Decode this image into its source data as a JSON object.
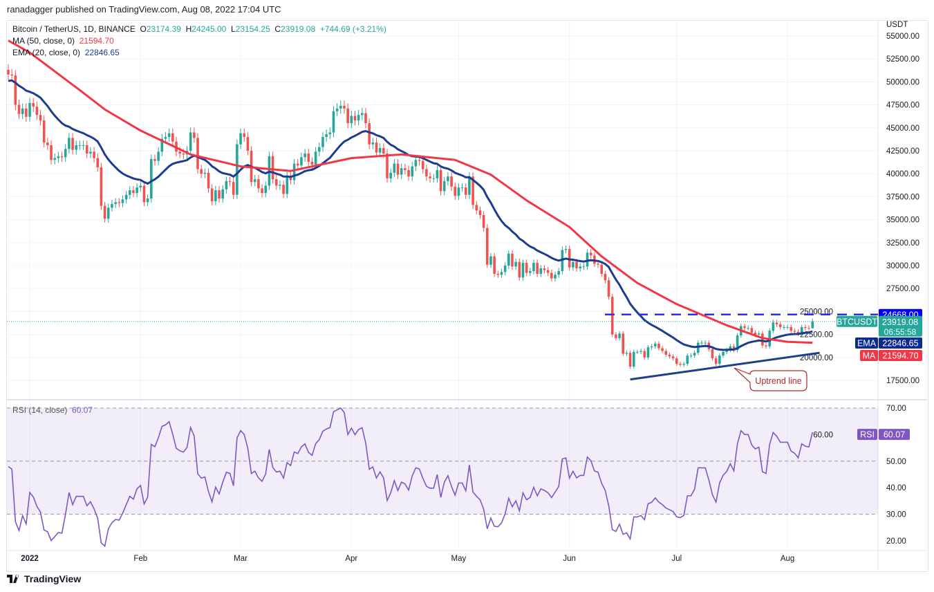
{
  "header": {
    "published": "ranadagger published on TradingView.com, Aug 08, 2022 17:04 UTC"
  },
  "legend": {
    "symbol": "Bitcoin / TetherUS, 1D, BINANCE",
    "o_label": "O",
    "o": "23174.39",
    "h_label": "H",
    "h": "24245.00",
    "l_label": "L",
    "l": "23154.25",
    "c_label": "C",
    "c": "23919.08",
    "change": "+744.69 (+3.21%)",
    "ma_label": "MA (50, close, 0)",
    "ma_value": "21594.70",
    "ema_label": "EMA (20, close, 0)",
    "ema_value": "22846.65",
    "rsi_label": "RSI (14, close)",
    "rsi_value": "60.07"
  },
  "axis": {
    "currency": "USDT"
  },
  "price_tags": {
    "resistance": "24668.00",
    "symbol": "BTCUSDT",
    "last": "23919.08",
    "countdown": "06:55:58",
    "ema_tag": "EMA",
    "ema": "22846.65",
    "ma_tag": "MA",
    "ma": "21594.70",
    "rsi_tag": "RSI",
    "rsi": "60.07"
  },
  "annotation": {
    "text": "Uptrend line"
  },
  "footer": {
    "brand": "TradingView"
  },
  "colors": {
    "up": "#26a69a",
    "down": "#ef5350",
    "ma": "#f23645",
    "ema": "#1c3d8f",
    "rsi": "#7e57c2",
    "resistance": "#2a2ef0",
    "trendline": "#1f3f8a"
  },
  "chart_data": [
    {
      "type": "candlestick",
      "title": "Bitcoin / TetherUS, 1D, BINANCE",
      "ylabel": "USDT",
      "start_date": "2021-12-26",
      "end_date": "2022-08-08",
      "ylim": [
        16000,
        55000
      ],
      "yticks": [
        "55000.00",
        "52500.00",
        "50000.00",
        "47500.00",
        "45000.00",
        "42500.00",
        "40000.00",
        "37500.00",
        "35000.00",
        "32500.00",
        "30000.00",
        "27500.00",
        "25000.00",
        "22500.00",
        "20000.00",
        "17500.00"
      ],
      "xticks": [
        {
          "date": "2022-01-01",
          "label": "2022"
        },
        {
          "date": "2022-02-01",
          "label": "Feb"
        },
        {
          "date": "2022-03-01",
          "label": "Mar"
        },
        {
          "date": "2022-04-01",
          "label": "Apr"
        },
        {
          "date": "2022-05-01",
          "label": "May"
        },
        {
          "date": "2022-06-01",
          "label": "Jun"
        },
        {
          "date": "2022-07-01",
          "label": "Jul"
        },
        {
          "date": "2022-08-01",
          "label": "Aug"
        }
      ],
      "close": [
        50800,
        50700,
        47500,
        46500,
        47100,
        46200,
        47700,
        47300,
        46400,
        45800,
        43400,
        43100,
        41500,
        41700,
        41900,
        41800,
        42700,
        43900,
        42600,
        43100,
        43100,
        43100,
        42200,
        42400,
        41700,
        40700,
        36500,
        35100,
        36300,
        36700,
        36900,
        36800,
        37200,
        37700,
        38200,
        37900,
        38500,
        38700,
        36900,
        37300,
        41600,
        41400,
        42400,
        43800,
        44000,
        44400,
        43500,
        42400,
        42200,
        42100,
        42500,
        44500,
        43900,
        40500,
        40000,
        40100,
        38400,
        37000,
        38200,
        37300,
        38300,
        39200,
        39100,
        37700,
        43200,
        44400,
        44000,
        42500,
        39100,
        39400,
        38400,
        37900,
        38700,
        41900,
        39400,
        38700,
        38800,
        37800,
        39700,
        39300,
        41100,
        40900,
        41800,
        42200,
        41300,
        41000,
        42400,
        42900,
        44000,
        44300,
        44500,
        46800,
        47100,
        47400,
        47100,
        45500,
        46300,
        45800,
        46400,
        46600,
        45500,
        43200,
        43400,
        42300,
        42800,
        42200,
        39500,
        40100,
        41100,
        39900,
        40600,
        40400,
        39700,
        40800,
        41500,
        41400,
        40500,
        39700,
        39500,
        39500,
        40400,
        38100,
        39200,
        39700,
        38600,
        37600,
        38500,
        38500,
        37700,
        39700,
        36600,
        36000,
        35500,
        34100,
        30100,
        31000,
        29100,
        29000,
        29300,
        30000,
        31300,
        29900,
        30400,
        28700,
        30300,
        29200,
        29400,
        30300,
        29100,
        29700,
        29500,
        29200,
        28600,
        29000,
        29400,
        31700,
        31800,
        29800,
        30400,
        29700,
        29900,
        29900,
        31400,
        31100,
        30200,
        30100,
        29100,
        28400,
        26600,
        22500,
        22100,
        22600,
        20400,
        20500,
        19000,
        20600,
        20600,
        20700,
        20000,
        21100,
        21200,
        21500,
        21000,
        20700,
        20300,
        20100,
        19900,
        19300,
        19200,
        19300,
        20200,
        20200,
        20500,
        21600,
        21600,
        21600,
        20900,
        19900,
        19300,
        20200,
        20600,
        20800,
        21200,
        20800,
        22400,
        23400,
        23200,
        23200,
        22700,
        22500,
        22600,
        21300,
        21200,
        22900,
        23800,
        23600,
        23300,
        23300,
        23300,
        22900,
        22800,
        22600,
        23300,
        23200,
        23174.39,
        23919.08
      ],
      "last_bar": {
        "open": 23174.39,
        "high": 24245.0,
        "low": 23154.25,
        "close": 23919.08
      },
      "ma50": [
        {
          "date": "2021-12-26",
          "value": 54500
        },
        {
          "date": "2022-01-01",
          "value": 53200
        },
        {
          "date": "2022-01-15",
          "value": 49100
        },
        {
          "date": "2022-01-22",
          "value": 47000
        },
        {
          "date": "2022-02-01",
          "value": 44700
        },
        {
          "date": "2022-02-15",
          "value": 42100
        },
        {
          "date": "2022-03-01",
          "value": 40800
        },
        {
          "date": "2022-03-15",
          "value": 40300
        },
        {
          "date": "2022-04-01",
          "value": 41700
        },
        {
          "date": "2022-04-15",
          "value": 42100
        },
        {
          "date": "2022-04-30",
          "value": 41500
        },
        {
          "date": "2022-05-10",
          "value": 39900
        },
        {
          "date": "2022-05-20",
          "value": 37100
        },
        {
          "date": "2022-06-01",
          "value": 34200
        },
        {
          "date": "2022-06-10",
          "value": 31000
        },
        {
          "date": "2022-06-20",
          "value": 28100
        },
        {
          "date": "2022-07-01",
          "value": 25800
        },
        {
          "date": "2022-07-15",
          "value": 23500
        },
        {
          "date": "2022-07-25",
          "value": 22100
        },
        {
          "date": "2022-08-01",
          "value": 21700
        },
        {
          "date": "2022-08-08",
          "value": 21594.7
        }
      ],
      "resistance": 24668.0,
      "trendline": [
        {
          "date": "2022-06-18",
          "value": 17600
        },
        {
          "date": "2022-08-10",
          "value": 20500
        }
      ]
    },
    {
      "type": "line",
      "title": "RSI (14, close)",
      "ylim": [
        17,
        73
      ],
      "yticks": [
        "70.00",
        "60.00",
        "50.00",
        "40.00",
        "30.00",
        "20.00"
      ],
      "band": [
        30,
        70
      ],
      "last": 60.07
    }
  ]
}
